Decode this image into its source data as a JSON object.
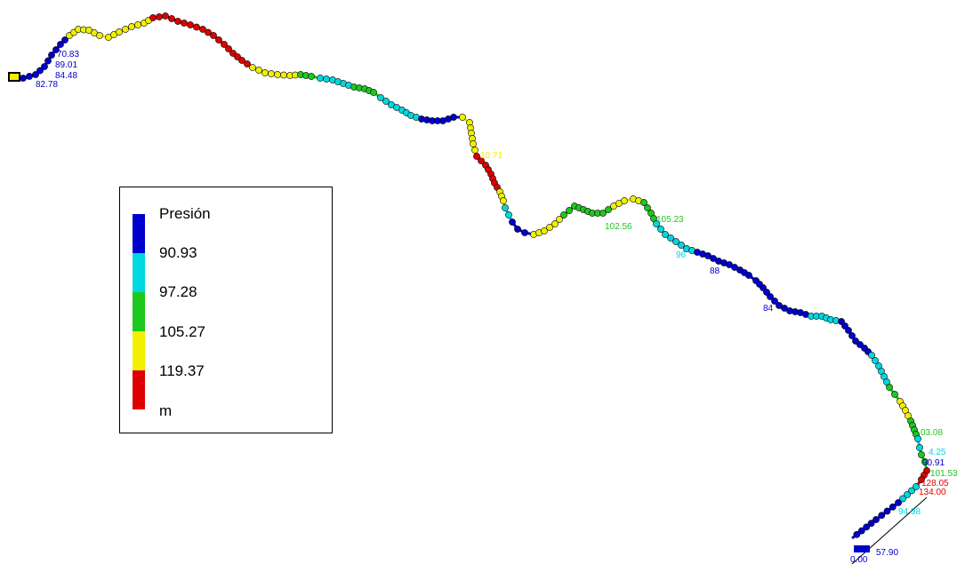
{
  "legend": {
    "title": "Presión",
    "unit": "m",
    "breaks": [
      "90.93",
      "97.28",
      "105.27",
      "119.37"
    ],
    "colors": [
      "#0000cc",
      "#00d8e0",
      "#1ec81e",
      "#f0f000",
      "#dd0000"
    ]
  },
  "labels": [
    {
      "text": "101.53",
      "color": "#1ec81e"
    },
    {
      "text": "128.05",
      "color": "#dd0000"
    },
    {
      "text": "134.00",
      "color": "#dd0000"
    },
    {
      "text": "94.98",
      "color": "#00d8e0"
    },
    {
      "text": "57.90",
      "color": "#0000cc"
    },
    {
      "text": "0.00",
      "color": "#0000cc"
    },
    {
      "text": "90.91",
      "color": "#0000cc"
    },
    {
      "text": "4.25",
      "color": "#00d8e0"
    },
    {
      "text": "03.08",
      "color": "#1ec81e"
    },
    {
      "text": "105.23",
      "color": "#1ec81e"
    },
    {
      "text": "102.56",
      "color": "#1ec81e"
    },
    {
      "text": "10.71",
      "color": "#f0f000"
    },
    {
      "text": "89.01",
      "color": "#0000cc"
    },
    {
      "text": "84.48",
      "color": "#0000cc"
    },
    {
      "text": "82.78",
      "color": "#0000cc"
    },
    {
      "text": "70.83",
      "color": "#0000cc"
    },
    {
      "text": "88",
      "color": "#0000cc"
    },
    {
      "text": "84",
      "color": "#0000cc"
    },
    {
      "text": "96",
      "color": "#00d8e0"
    }
  ]
}
